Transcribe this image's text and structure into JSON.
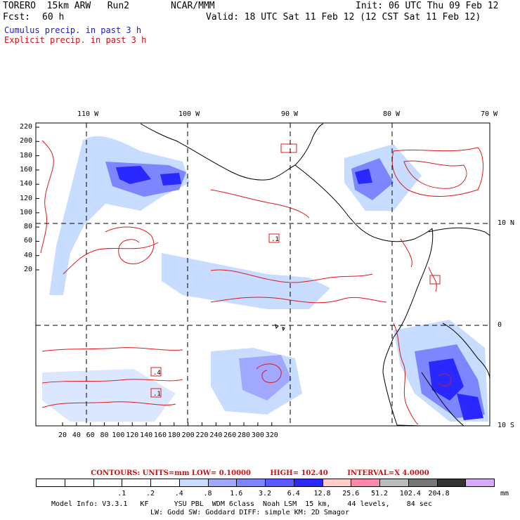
{
  "header": {
    "model": "TORERO  15km ARW   Run2",
    "org": "NCAR/MMM",
    "init": "Init: 06 UTC Thu 09 Feb 12",
    "fcst_label": "Fcst:",
    "fcst_value": "60 h",
    "valid": "Valid: 18 UTC Sat 11 Feb 12 (12 CST Sat 11 Feb 12)",
    "legend_cumulus": "Cumulus precip. in past 3 h",
    "legend_explicit": "Explicit precip. in past 3 h"
  },
  "map": {
    "top_lon_labels": [
      "110 W",
      "100 W",
      "90 W",
      "80 W",
      "70 W"
    ],
    "right_lat_labels": [
      "10 N",
      "0",
      "10 S"
    ],
    "left_y_ticks": [
      "220",
      "200",
      "180",
      "160",
      "140",
      "120",
      "100",
      "80",
      "60",
      "40",
      "20"
    ],
    "bottom_x_ticks": [
      "20",
      "40",
      "60",
      "80",
      "100",
      "120",
      "140",
      "160",
      "180",
      "200",
      "220",
      "240",
      "260",
      "280",
      "300",
      "320"
    ],
    "contour_labels": [
      ".1",
      ".4",
      ".1"
    ],
    "colors": {
      "blue_light": "#c8dcff",
      "blue_mid": "#7e86ff",
      "blue_dark": "#2828ff",
      "contour_red": "#e01818",
      "coast": "#000000"
    }
  },
  "contours_line": {
    "contours": "CONTOURS:  UNITS=mm  LOW= 0.10000",
    "high": "HIGH=  102.40",
    "interval": "INTERVAL=X  4.0000"
  },
  "colorbar": {
    "colors": [
      "#ffffff",
      "#ffffff",
      "#ffffff",
      "#ffffff",
      "#ffffff",
      "#c8dcff",
      "#a0a8ff",
      "#7e86ff",
      "#5a5aff",
      "#2828ff",
      "#ffcccc",
      "#ff88aa",
      "#bbbbbb",
      "#777777",
      "#333333",
      "#d8a8ff"
    ],
    "labels": [
      ".1",
      ".2",
      ".4",
      ".8",
      "1.6",
      "3.2",
      "6.4",
      "12.8",
      "25.6",
      "51.2",
      "102.4",
      "204.8"
    ],
    "unit": "mm"
  },
  "footer": {
    "line1": "Model Info: V3.3.1   KF      YSU PBL  WDM 6class  Noah LSM  15 km,    44 levels,    84 sec",
    "line2": "LW: Godd SW: Goddard DIFF: simple KM: 2D Smagor"
  }
}
